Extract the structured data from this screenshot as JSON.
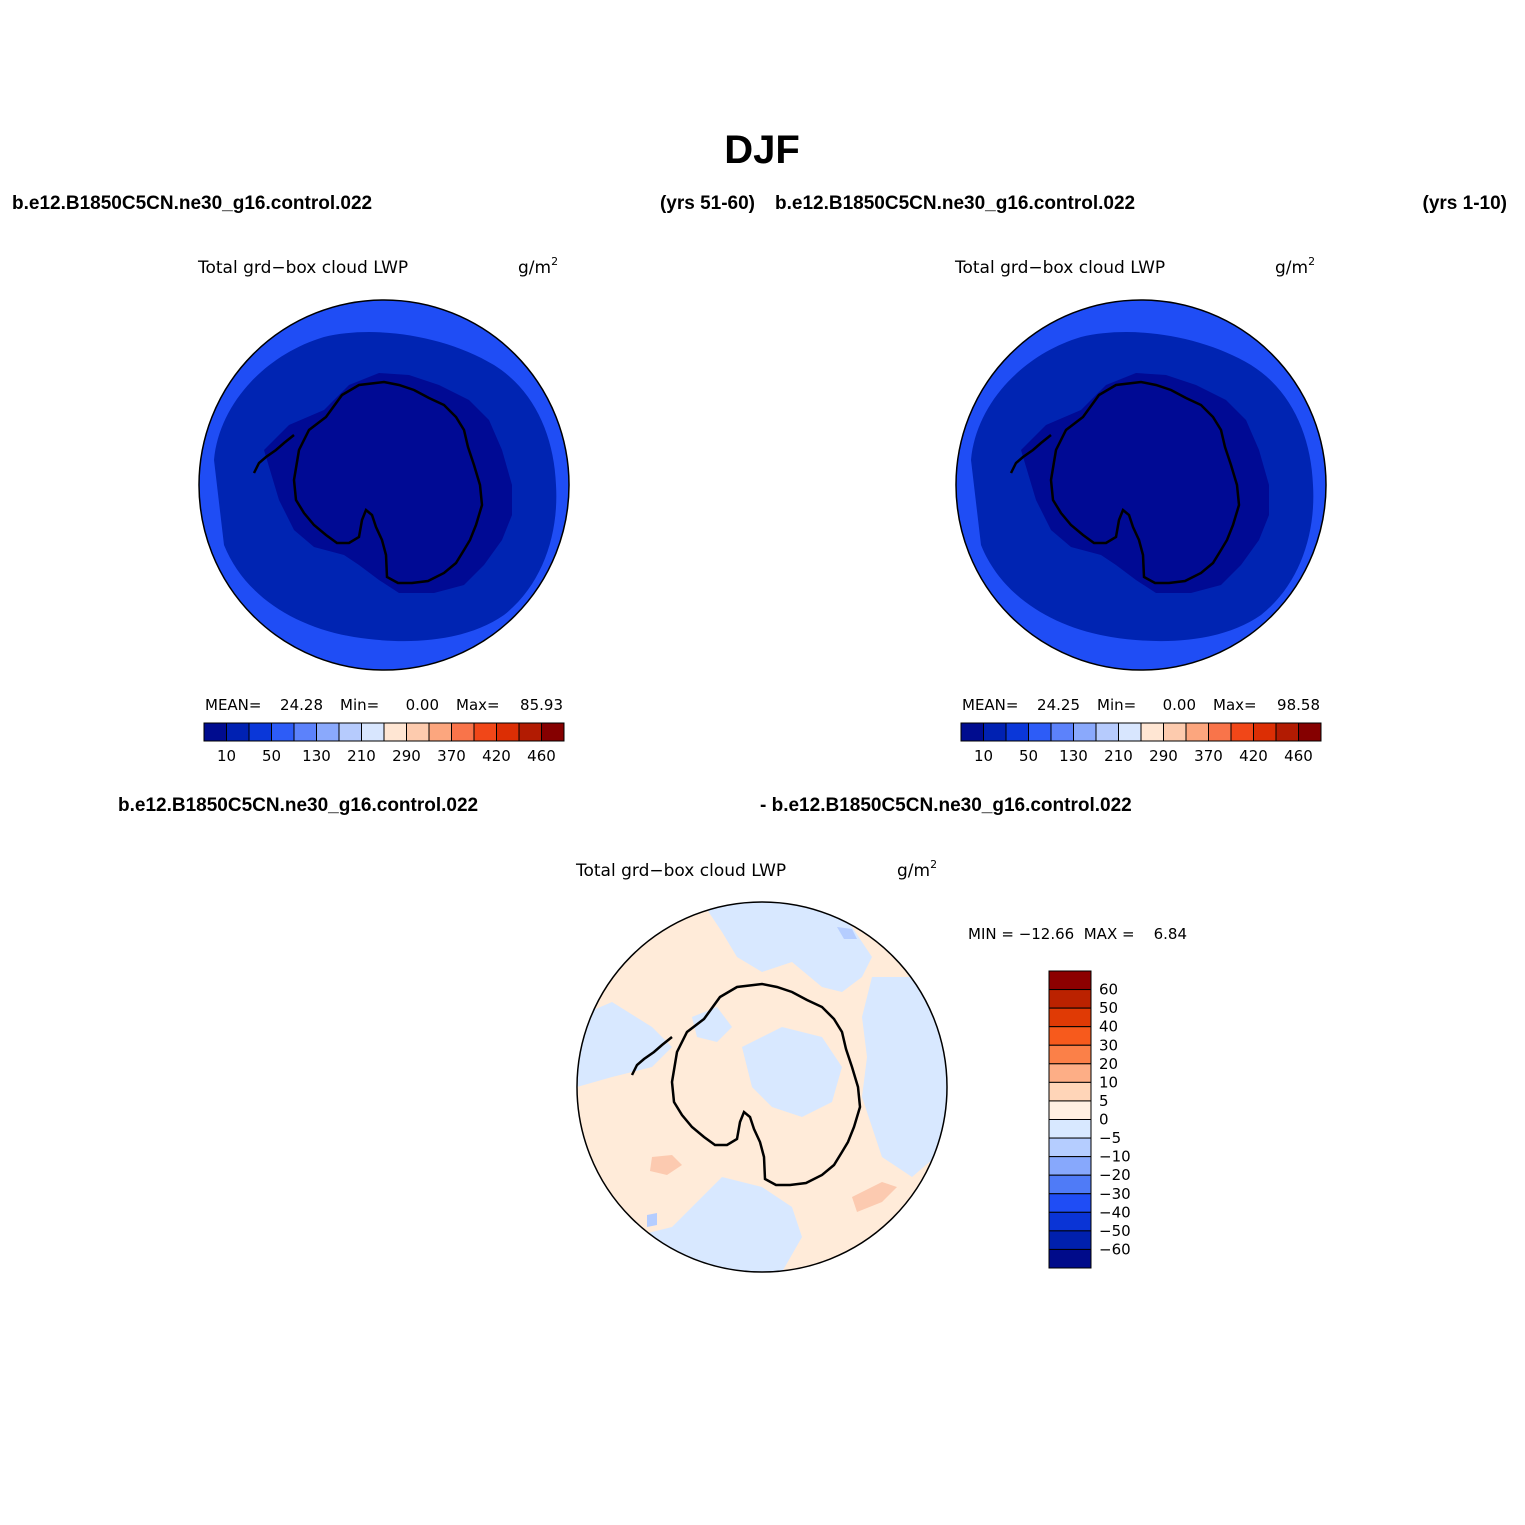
{
  "page_title": "DJF",
  "panels": [
    {
      "case_name": "b.e12.B1850C5CN.ne30_g16.control.022",
      "years": "(yrs 51-60)",
      "variable": "Total grd−box cloud LWP",
      "units": "g/m",
      "units_sup": "2",
      "stats": {
        "mean_label": "MEAN=",
        "mean": "24.28",
        "min_label": "Min=",
        "min": "0.00",
        "max_label": "Max=",
        "max": "85.93"
      }
    },
    {
      "case_name": "b.e12.B1850C5CN.ne30_g16.control.022",
      "years": "(yrs 1-10)",
      "variable": "Total grd−box cloud LWP",
      "units": "g/m",
      "units_sup": "2",
      "stats": {
        "mean_label": "MEAN=",
        "mean": "24.25",
        "min_label": "Min=",
        "min": "0.00",
        "max_label": "Max=",
        "max": "98.58"
      }
    }
  ],
  "difference": {
    "case_a": "b.e12.B1850C5CN.ne30_g16.control.022",
    "case_b": "- b.e12.B1850C5CN.ne30_g16.control.022",
    "variable": "Total grd−box cloud LWP",
    "units": "g/m",
    "units_sup": "2",
    "minmax_text": "MIN = −12.66  MAX =    6.84"
  },
  "chart_data": [
    {
      "type": "heatmap",
      "projection": "south polar stereographic",
      "colorbar_labels": [
        "10",
        "50",
        "130",
        "210",
        "290",
        "370",
        "420",
        "460"
      ],
      "colorbar_colors": [
        "#000c8f",
        "#0021b2",
        "#0a37d9",
        "#2d5cf7",
        "#5c82fb",
        "#8aa9fc",
        "#b6cbfd",
        "#d8e6fe",
        "#ffe6d3",
        "#fdcbae",
        "#fca67e",
        "#f9744a",
        "#f14718",
        "#dc2e04",
        "#b21b02",
        "#850000"
      ],
      "field_colors": {
        "outer": "#1f4df5",
        "middle": "#0024b2",
        "inner": "#000a94"
      }
    },
    {
      "type": "heatmap",
      "projection": "south polar stereographic",
      "colorbar_labels": [
        "10",
        "50",
        "130",
        "210",
        "290",
        "370",
        "420",
        "460"
      ],
      "colorbar_colors": [
        "#000c8f",
        "#0021b2",
        "#0a37d9",
        "#2d5cf7",
        "#5c82fb",
        "#8aa9fc",
        "#b6cbfd",
        "#d8e6fe",
        "#ffe6d3",
        "#fdcbae",
        "#fca67e",
        "#f9744a",
        "#f14718",
        "#dc2e04",
        "#b21b02",
        "#850000"
      ],
      "field_colors": {
        "outer": "#1f4df5",
        "middle": "#0024b2",
        "inner": "#000a94"
      }
    },
    {
      "type": "heatmap",
      "projection": "south polar stereographic",
      "colorbar_labels": [
        "60",
        "50",
        "40",
        "30",
        "20",
        "10",
        "5",
        "0",
        "−5",
        "−10",
        "−20",
        "−30",
        "−40",
        "−50",
        "−60"
      ],
      "colorbar_colors": [
        "#8c0000",
        "#bb2200",
        "#e03a05",
        "#f75a1c",
        "#fb8048",
        "#fdae86",
        "#ffd5b8",
        "#fff0e2",
        "#d8e8ff",
        "#b5cdff",
        "#87a8fc",
        "#4f7bf7",
        "#1f4df5",
        "#0a34d6",
        "#0020ad",
        "#000b8a"
      ],
      "field_colors": {
        "positive": "#ffebd9",
        "negative": "#d8e8ff",
        "pos_blob": "#fccab0",
        "neg_blob": "#b5cdff"
      }
    }
  ]
}
